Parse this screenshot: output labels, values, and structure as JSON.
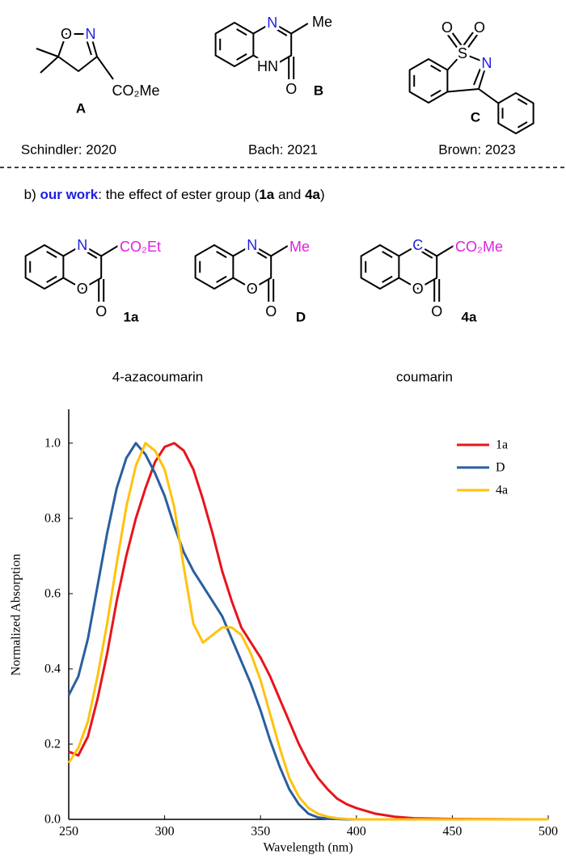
{
  "scheme_a": {
    "structures": [
      {
        "atoms": [
          "O",
          "N",
          "CO₂Me"
        ],
        "label": "A",
        "caption": "Schindler: 2020"
      },
      {
        "atoms": [
          "N",
          "HN",
          "Me",
          "O"
        ],
        "label": "B",
        "caption": "Bach: 2021"
      },
      {
        "atoms": [
          "S",
          "O",
          "O",
          "N"
        ],
        "label": "C",
        "caption": "Brown: 2023"
      }
    ]
  },
  "scheme_b": {
    "heading": [
      "b) ",
      "our work",
      ": the effect of ester group (",
      "1a",
      " and ",
      "4a",
      ")"
    ],
    "structures": [
      {
        "atoms": [
          "N",
          "O",
          "CO₂Et",
          "O"
        ],
        "label": "1a"
      },
      {
        "atoms": [
          "N",
          "O",
          "Me",
          "O"
        ],
        "label": "D"
      },
      {
        "atoms": [
          "C",
          "O",
          "CO₂Me",
          "O"
        ],
        "label": "4a"
      }
    ],
    "classes": [
      "4-azacoumarin",
      "coumarin"
    ]
  },
  "chart_data": {
    "type": "line",
    "x_label": "Wavelength (nm)",
    "y_label": "Normalized Absorption",
    "x": [
      250,
      255,
      260,
      265,
      270,
      275,
      280,
      285,
      290,
      295,
      300,
      305,
      310,
      315,
      320,
      325,
      330,
      335,
      340,
      345,
      350,
      355,
      360,
      365,
      370,
      375,
      380,
      385,
      390,
      395,
      400,
      410,
      420,
      430,
      450,
      500
    ],
    "series": [
      {
        "name": "1a",
        "color": "#e8141c",
        "values": [
          0.18,
          0.17,
          0.22,
          0.32,
          0.44,
          0.58,
          0.7,
          0.8,
          0.88,
          0.95,
          0.99,
          1.0,
          0.98,
          0.93,
          0.85,
          0.76,
          0.66,
          0.58,
          0.51,
          0.47,
          0.43,
          0.38,
          0.32,
          0.26,
          0.2,
          0.15,
          0.11,
          0.08,
          0.055,
          0.04,
          0.03,
          0.015,
          0.007,
          0.003,
          0.001,
          0
        ]
      },
      {
        "name": "D",
        "color": "#2a5fa0",
        "values": [
          0.33,
          0.38,
          0.48,
          0.62,
          0.76,
          0.88,
          0.96,
          1.0,
          0.97,
          0.92,
          0.86,
          0.78,
          0.71,
          0.66,
          0.62,
          0.58,
          0.54,
          0.48,
          0.42,
          0.36,
          0.29,
          0.21,
          0.14,
          0.08,
          0.04,
          0.015,
          0.005,
          0.002,
          0.001,
          0,
          0,
          0,
          0,
          0,
          0,
          0
        ]
      },
      {
        "name": "4a",
        "color": "#ffc20e",
        "values": [
          0.15,
          0.19,
          0.26,
          0.38,
          0.52,
          0.68,
          0.83,
          0.94,
          1.0,
          0.98,
          0.93,
          0.83,
          0.67,
          0.52,
          0.47,
          0.49,
          0.51,
          0.51,
          0.49,
          0.44,
          0.37,
          0.28,
          0.19,
          0.11,
          0.06,
          0.03,
          0.015,
          0.007,
          0.003,
          0.001,
          0,
          0,
          0,
          0,
          0,
          0
        ]
      }
    ],
    "xlim": [
      250,
      500
    ],
    "xticks": [
      250,
      300,
      350,
      400,
      450,
      500
    ],
    "ylim": [
      0,
      1.09
    ],
    "yticks": [
      {
        "value": 0,
        "label": "0.0"
      },
      0.2,
      0.4,
      0.6,
      0.8,
      {
        "value": 1,
        "label": "1.0"
      }
    ],
    "grid": false,
    "legend": "upper right"
  }
}
